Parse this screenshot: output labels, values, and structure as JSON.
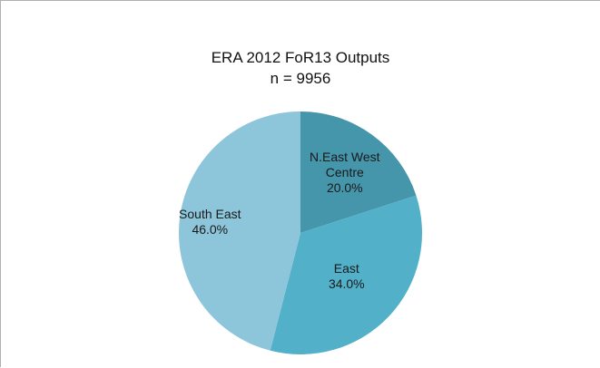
{
  "chart_data": {
    "type": "pie",
    "title": "ERA 2012 FoR13 Outputs",
    "subtitle": "n = 9956",
    "slices": [
      {
        "label_lines": [
          "N.East West",
          "Centre"
        ],
        "value": 20.0,
        "value_label": "20.0%",
        "color": "#4595ab"
      },
      {
        "label_lines": [
          "East"
        ],
        "value": 34.0,
        "value_label": "34.0%",
        "color": "#52b0c9"
      },
      {
        "label_lines": [
          "South East"
        ],
        "value": 46.0,
        "value_label": "46.0%",
        "color": "#8dc6da"
      }
    ]
  }
}
